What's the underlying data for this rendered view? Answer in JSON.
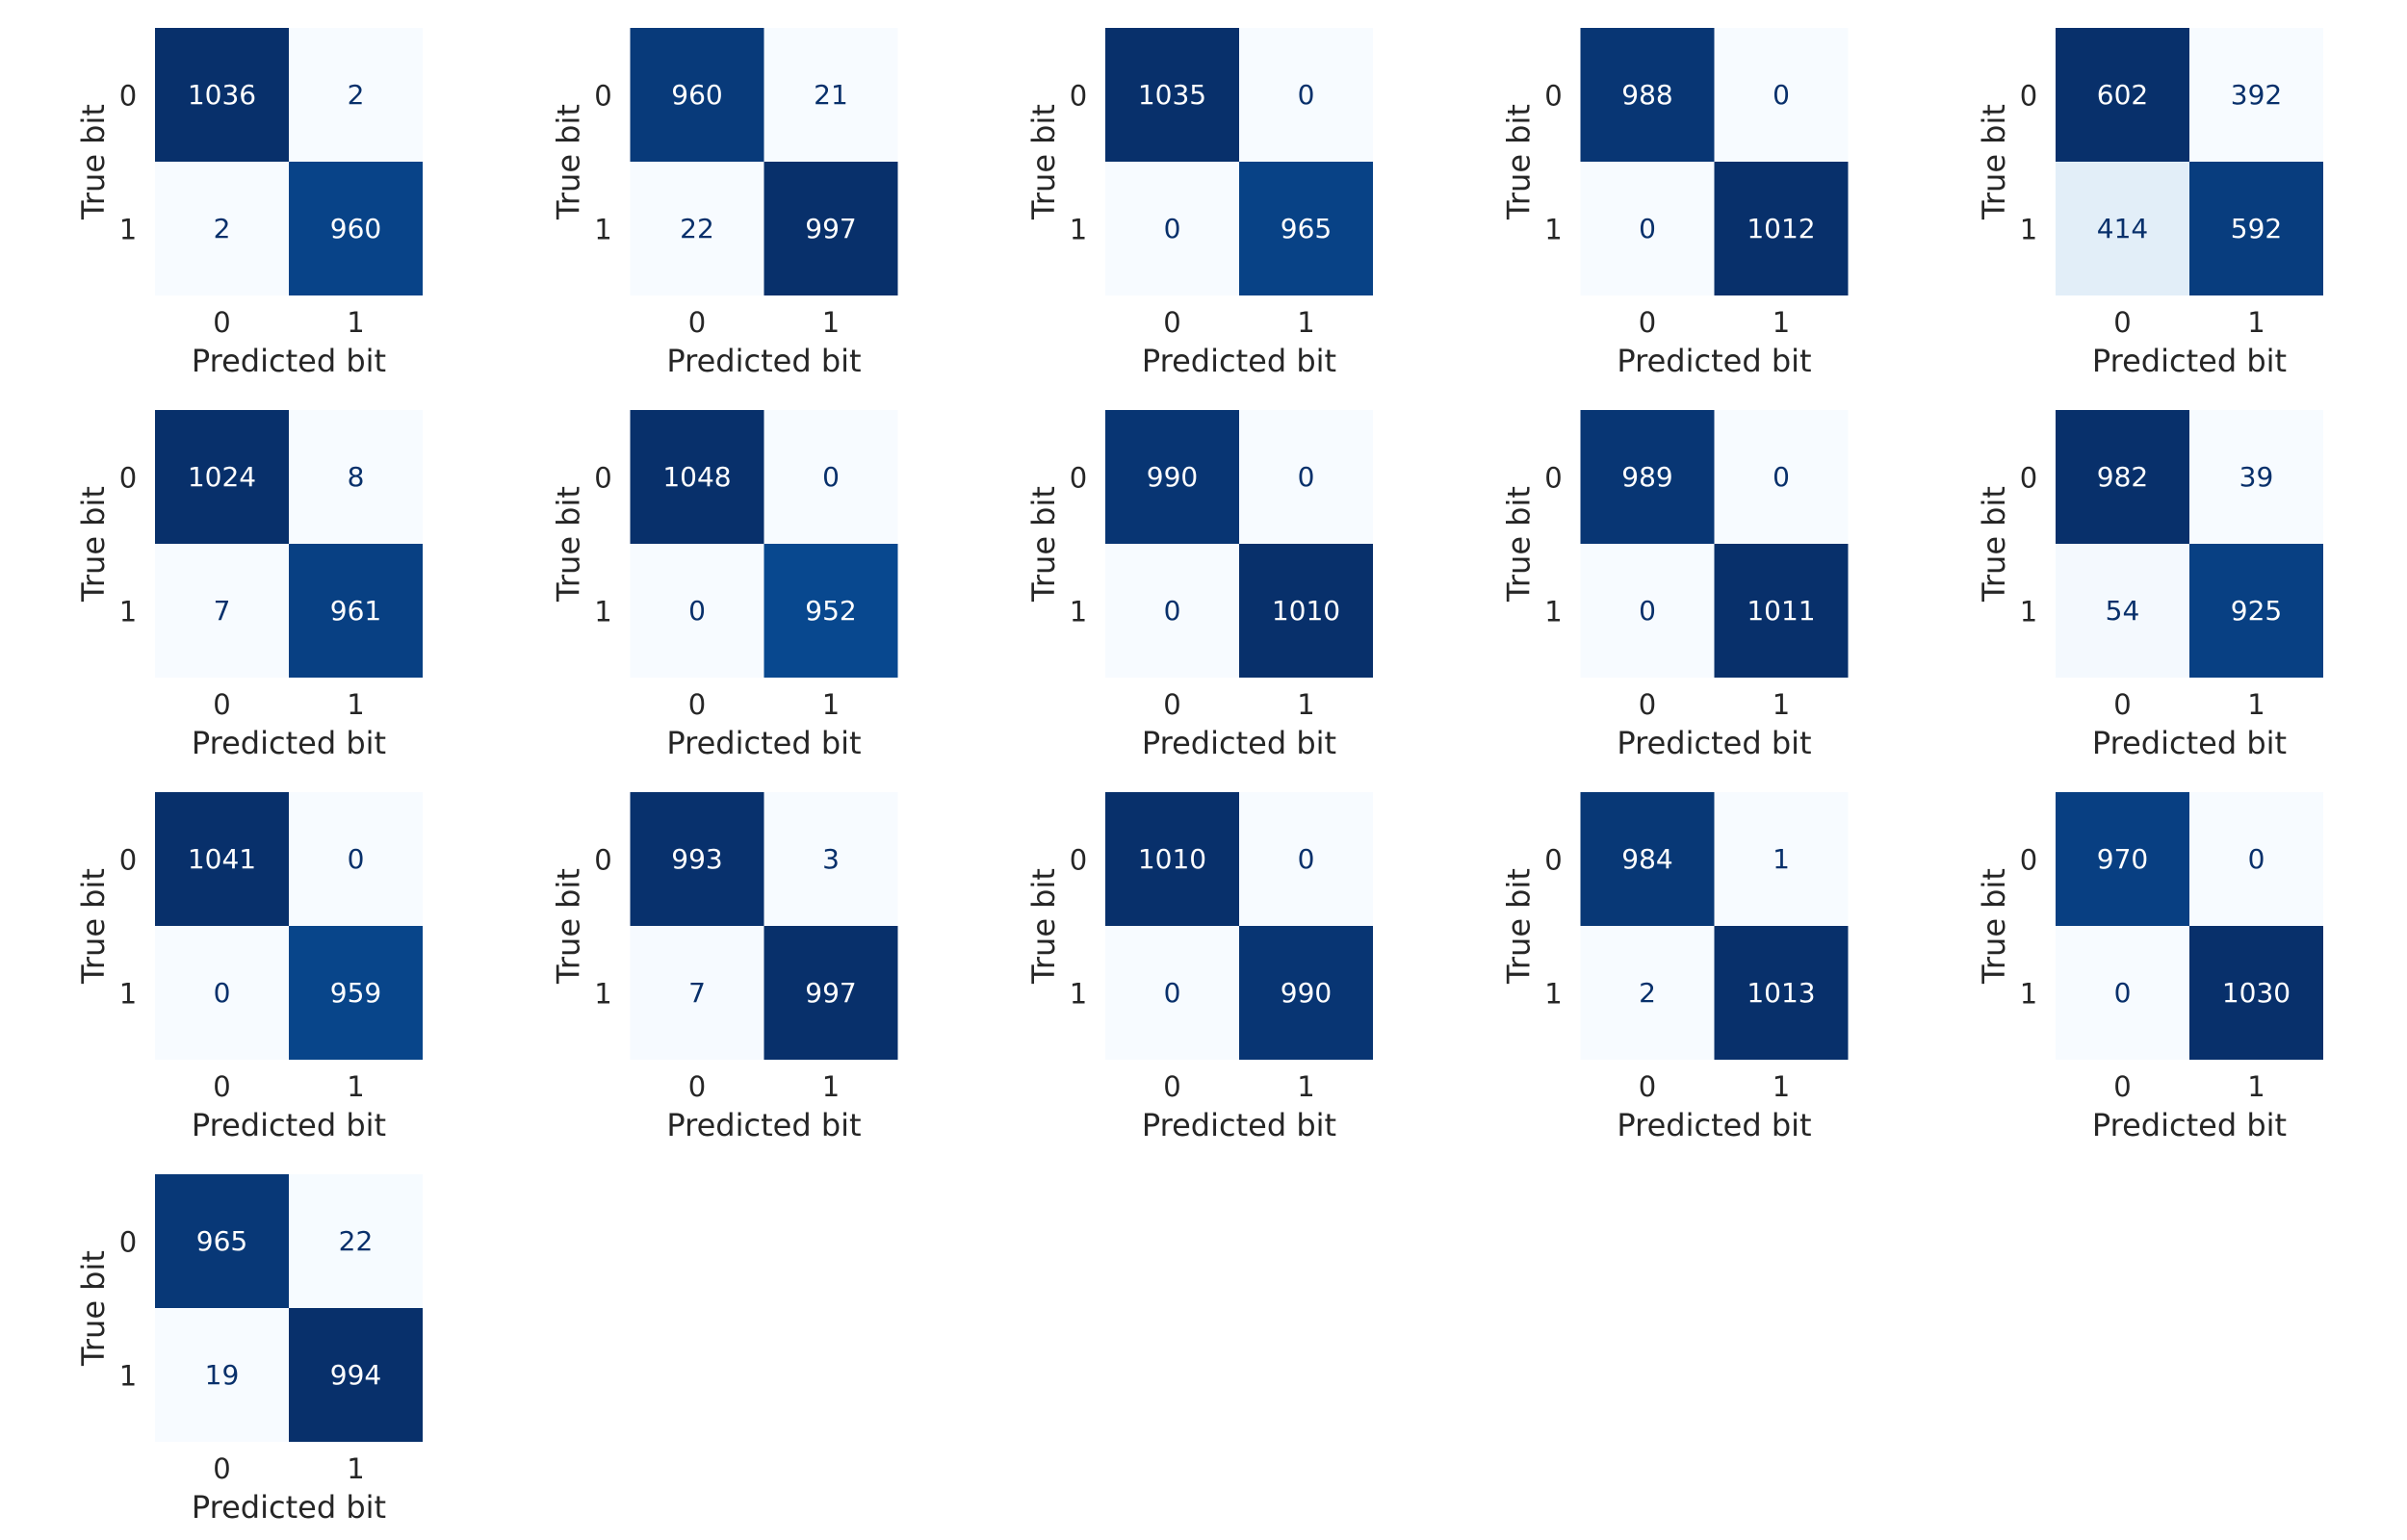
{
  "chart_data": [
    {
      "type": "heatmap",
      "xlabel": "Predicted bit",
      "ylabel": "True bit",
      "x_ticks": [
        "0",
        "1"
      ],
      "y_ticks": [
        "0",
        "1"
      ],
      "colormap": "Blues",
      "values": [
        [
          1036,
          2
        ],
        [
          2,
          960
        ]
      ]
    },
    {
      "type": "heatmap",
      "xlabel": "Predicted bit",
      "ylabel": "True bit",
      "x_ticks": [
        "0",
        "1"
      ],
      "y_ticks": [
        "0",
        "1"
      ],
      "colormap": "Blues",
      "values": [
        [
          960,
          21
        ],
        [
          22,
          997
        ]
      ]
    },
    {
      "type": "heatmap",
      "xlabel": "Predicted bit",
      "ylabel": "True bit",
      "x_ticks": [
        "0",
        "1"
      ],
      "y_ticks": [
        "0",
        "1"
      ],
      "colormap": "Blues",
      "values": [
        [
          1035,
          0
        ],
        [
          0,
          965
        ]
      ]
    },
    {
      "type": "heatmap",
      "xlabel": "Predicted bit",
      "ylabel": "True bit",
      "x_ticks": [
        "0",
        "1"
      ],
      "y_ticks": [
        "0",
        "1"
      ],
      "colormap": "Blues",
      "values": [
        [
          988,
          0
        ],
        [
          0,
          1012
        ]
      ]
    },
    {
      "type": "heatmap",
      "xlabel": "Predicted bit",
      "ylabel": "True bit",
      "x_ticks": [
        "0",
        "1"
      ],
      "y_ticks": [
        "0",
        "1"
      ],
      "colormap": "Blues",
      "values": [
        [
          602,
          392
        ],
        [
          414,
          592
        ]
      ]
    },
    {
      "type": "heatmap",
      "xlabel": "Predicted bit",
      "ylabel": "True bit",
      "x_ticks": [
        "0",
        "1"
      ],
      "y_ticks": [
        "0",
        "1"
      ],
      "colormap": "Blues",
      "values": [
        [
          1024,
          8
        ],
        [
          7,
          961
        ]
      ]
    },
    {
      "type": "heatmap",
      "xlabel": "Predicted bit",
      "ylabel": "True bit",
      "x_ticks": [
        "0",
        "1"
      ],
      "y_ticks": [
        "0",
        "1"
      ],
      "colormap": "Blues",
      "values": [
        [
          1048,
          0
        ],
        [
          0,
          952
        ]
      ]
    },
    {
      "type": "heatmap",
      "xlabel": "Predicted bit",
      "ylabel": "True bit",
      "x_ticks": [
        "0",
        "1"
      ],
      "y_ticks": [
        "0",
        "1"
      ],
      "colormap": "Blues",
      "values": [
        [
          990,
          0
        ],
        [
          0,
          1010
        ]
      ]
    },
    {
      "type": "heatmap",
      "xlabel": "Predicted bit",
      "ylabel": "True bit",
      "x_ticks": [
        "0",
        "1"
      ],
      "y_ticks": [
        "0",
        "1"
      ],
      "colormap": "Blues",
      "values": [
        [
          989,
          0
        ],
        [
          0,
          1011
        ]
      ]
    },
    {
      "type": "heatmap",
      "xlabel": "Predicted bit",
      "ylabel": "True bit",
      "x_ticks": [
        "0",
        "1"
      ],
      "y_ticks": [
        "0",
        "1"
      ],
      "colormap": "Blues",
      "values": [
        [
          982,
          39
        ],
        [
          54,
          925
        ]
      ]
    },
    {
      "type": "heatmap",
      "xlabel": "Predicted bit",
      "ylabel": "True bit",
      "x_ticks": [
        "0",
        "1"
      ],
      "y_ticks": [
        "0",
        "1"
      ],
      "colormap": "Blues",
      "values": [
        [
          1041,
          0
        ],
        [
          0,
          959
        ]
      ]
    },
    {
      "type": "heatmap",
      "xlabel": "Predicted bit",
      "ylabel": "True bit",
      "x_ticks": [
        "0",
        "1"
      ],
      "y_ticks": [
        "0",
        "1"
      ],
      "colormap": "Blues",
      "values": [
        [
          993,
          3
        ],
        [
          7,
          997
        ]
      ]
    },
    {
      "type": "heatmap",
      "xlabel": "Predicted bit",
      "ylabel": "True bit",
      "x_ticks": [
        "0",
        "1"
      ],
      "y_ticks": [
        "0",
        "1"
      ],
      "colormap": "Blues",
      "values": [
        [
          1010,
          0
        ],
        [
          0,
          990
        ]
      ]
    },
    {
      "type": "heatmap",
      "xlabel": "Predicted bit",
      "ylabel": "True bit",
      "x_ticks": [
        "0",
        "1"
      ],
      "y_ticks": [
        "0",
        "1"
      ],
      "colormap": "Blues",
      "values": [
        [
          984,
          1
        ],
        [
          2,
          1013
        ]
      ]
    },
    {
      "type": "heatmap",
      "xlabel": "Predicted bit",
      "ylabel": "True bit",
      "x_ticks": [
        "0",
        "1"
      ],
      "y_ticks": [
        "0",
        "1"
      ],
      "colormap": "Blues",
      "values": [
        [
          970,
          0
        ],
        [
          0,
          1030
        ]
      ]
    },
    {
      "type": "heatmap",
      "xlabel": "Predicted bit",
      "ylabel": "True bit",
      "x_ticks": [
        "0",
        "1"
      ],
      "y_ticks": [
        "0",
        "1"
      ],
      "colormap": "Blues",
      "values": [
        [
          965,
          22
        ],
        [
          19,
          994
        ]
      ]
    }
  ]
}
